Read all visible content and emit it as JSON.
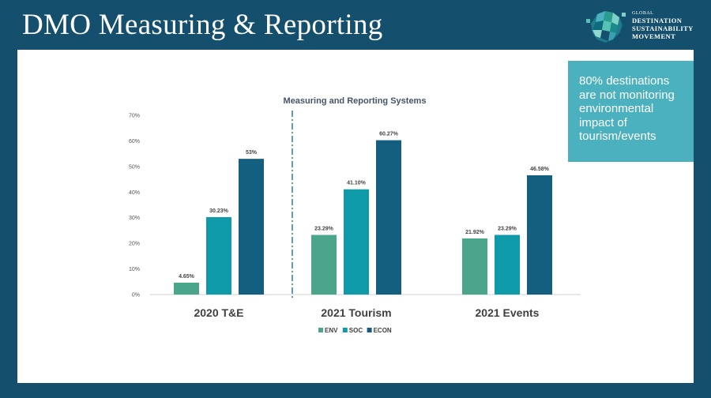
{
  "slide": {
    "title": "DMO Measuring & Reporting"
  },
  "logo": {
    "line1": "GLOBAL",
    "line2": "DESTINATION",
    "line3": "SUSTAINABILITY",
    "line4": "MOVEMENT"
  },
  "callout": {
    "text": "80% destinations are not monitoring environmental impact of tourism/events"
  },
  "colors": {
    "background": "#14506e",
    "callout": "#4bb1be",
    "env": "#4aa58a",
    "soc": "#0f9aaa",
    "econ": "#145f80"
  },
  "chart_data": {
    "type": "bar",
    "title": "Measuring and Reporting Systems",
    "categories": [
      "2020 T&E",
      "2021 Tourism",
      "2021 Events"
    ],
    "series": [
      {
        "name": "ENV",
        "values": [
          4.65,
          23.29,
          21.92
        ],
        "labels": [
          "4.65%",
          "23.29%",
          "21.92%"
        ]
      },
      {
        "name": "SOC",
        "values": [
          30.23,
          41.1,
          23.29
        ],
        "labels": [
          "30.23%",
          "41.10%",
          "23.29%"
        ]
      },
      {
        "name": "ECON",
        "values": [
          53,
          60.27,
          46.58
        ],
        "labels": [
          "53%",
          "60.27%",
          "46.58%"
        ]
      }
    ],
    "ylim": [
      0,
      70
    ],
    "yticks": [
      "0%",
      "10%",
      "20%",
      "30%",
      "40%",
      "50%",
      "60%",
      "70%"
    ],
    "gridlines": false,
    "legend_position": "bottom",
    "divider_after_category": 0
  }
}
